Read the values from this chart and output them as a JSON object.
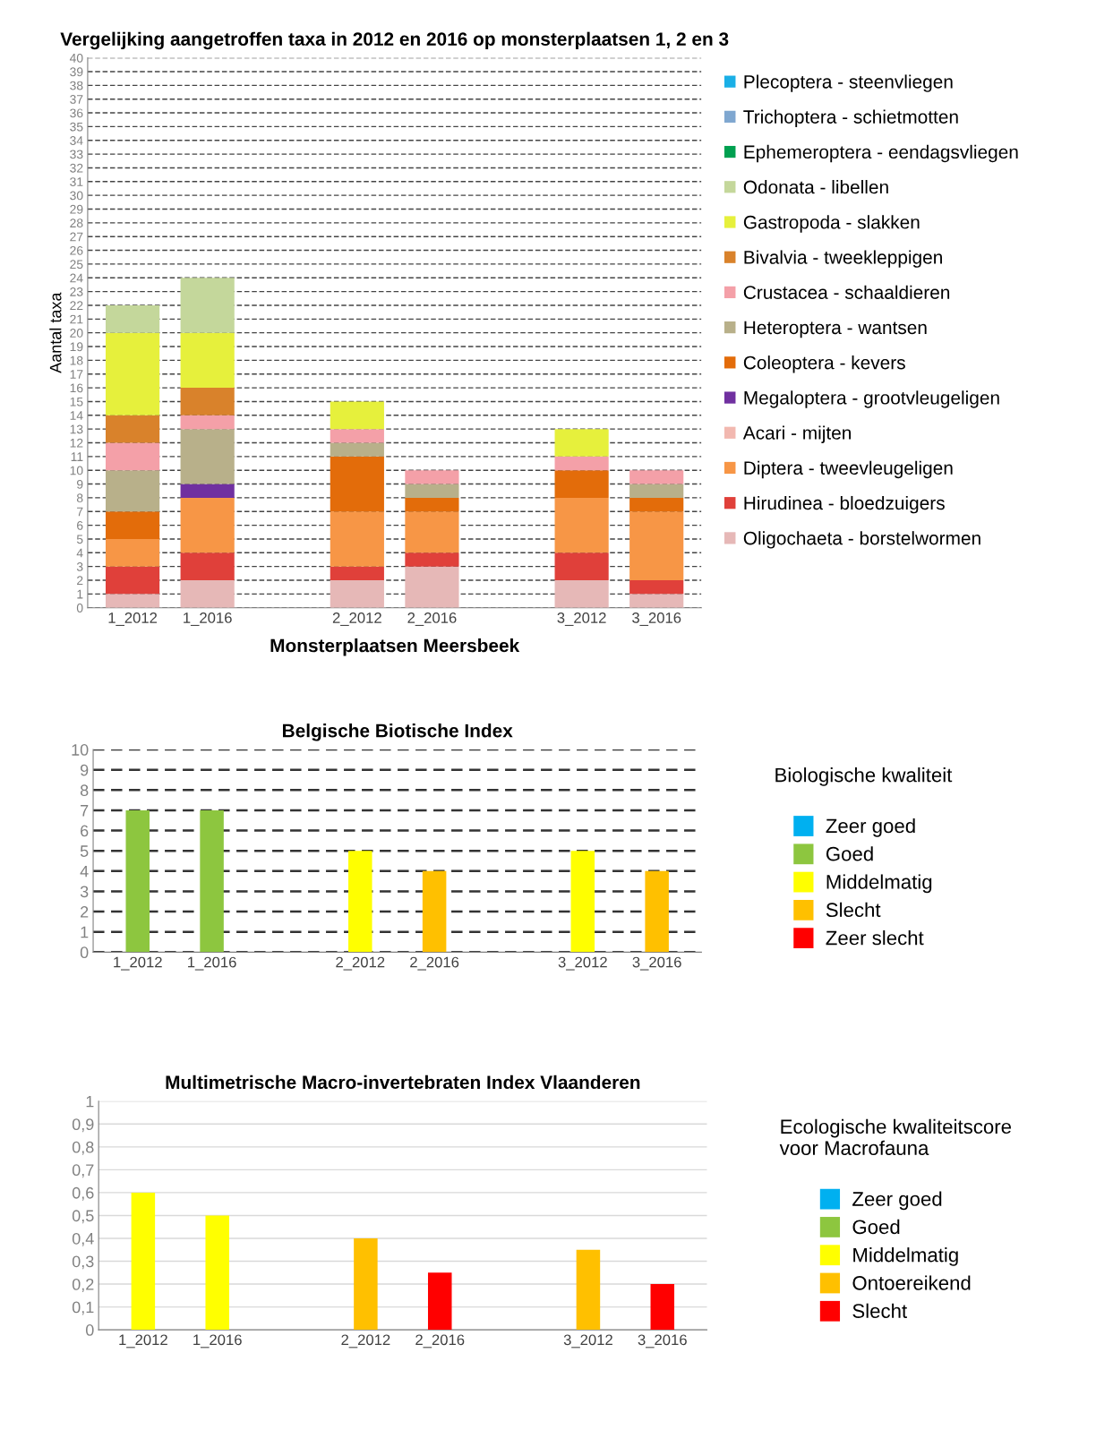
{
  "chart_data": [
    {
      "type": "bar",
      "title": "Vergelijking aangetroffen taxa in 2012 en 2016 op monsterplaatsen 1, 2 en 3",
      "xlabel": "Monsterplaatsen Meersbeek",
      "ylabel": "Aantal taxa",
      "categories": [
        "1_2012",
        "1_2016",
        null,
        "2_2012",
        "2_2016",
        null,
        "3_2012",
        "3_2016"
      ],
      "stacked": true,
      "ylim": [
        0,
        40
      ],
      "yticks": [
        0,
        1,
        2,
        3,
        4,
        5,
        6,
        7,
        8,
        9,
        10,
        11,
        12,
        13,
        14,
        15,
        16,
        17,
        18,
        19,
        20,
        21,
        22,
        23,
        24,
        25,
        26,
        27,
        28,
        29,
        30,
        31,
        32,
        33,
        34,
        35,
        36,
        37,
        38,
        39,
        40
      ],
      "grid": "y",
      "legend": "right",
      "series": [
        {
          "name": "Oligochaeta - borstelwormen",
          "color": "#e6b8b7",
          "values": [
            1,
            2,
            null,
            2,
            3,
            null,
            2,
            1
          ]
        },
        {
          "name": "Hirudinea - bloedzuigers",
          "color": "#e0403a",
          "values": [
            2,
            2,
            null,
            1,
            1,
            null,
            2,
            1
          ]
        },
        {
          "name": "Diptera - tweevleugeligen",
          "color": "#f79646",
          "values": [
            2,
            4,
            null,
            4,
            3,
            null,
            4,
            5
          ]
        },
        {
          "name": "Acari - mijten",
          "color": "#f2b8b0",
          "values": [
            0,
            0,
            null,
            0,
            0,
            null,
            0,
            0
          ]
        },
        {
          "name": "Megaloptera - grootvleugeligen",
          "color": "#7030a0",
          "values": [
            0,
            1,
            null,
            0,
            0,
            null,
            0,
            0
          ]
        },
        {
          "name": "Coleoptera - kevers",
          "color": "#e36c0a",
          "values": [
            2,
            0,
            null,
            4,
            1,
            null,
            2,
            1
          ]
        },
        {
          "name": "Heteroptera - wantsen",
          "color": "#b8b08a",
          "values": [
            3,
            4,
            null,
            1,
            1,
            null,
            0,
            1
          ]
        },
        {
          "name": "Crustacea - schaaldieren",
          "color": "#f4a0a8",
          "values": [
            2,
            1,
            null,
            1,
            1,
            null,
            1,
            1
          ]
        },
        {
          "name": "Bivalvia - tweekleppigen",
          "color": "#d9822b",
          "values": [
            2,
            2,
            null,
            0,
            0,
            null,
            0,
            0
          ]
        },
        {
          "name": "Gastropoda - slakken",
          "color": "#e6f03c",
          "values": [
            6,
            4,
            null,
            2,
            0,
            null,
            2,
            0
          ]
        },
        {
          "name": "Odonata - libellen",
          "color": "#c4d79b",
          "values": [
            2,
            4,
            null,
            0,
            0,
            null,
            0,
            0
          ]
        },
        {
          "name": "Ephemeroptera - eendagsvliegen",
          "color": "#00a050",
          "values": [
            0,
            0,
            null,
            0,
            0,
            null,
            0,
            0
          ]
        },
        {
          "name": "Trichoptera - schietmotten",
          "color": "#7fa7d0",
          "values": [
            0,
            0,
            null,
            0,
            0,
            null,
            0,
            0
          ]
        },
        {
          "name": "Plecoptera - steenvliegen",
          "color": "#1aafe6",
          "values": [
            0,
            0,
            null,
            0,
            0,
            null,
            0,
            0
          ]
        }
      ]
    },
    {
      "type": "bar",
      "title": "Belgische Biotische Index",
      "legend_title": "Biologische kwaliteit",
      "categories": [
        "1_2012",
        "1_2016",
        null,
        "2_2012",
        "2_2016",
        null,
        "3_2012",
        "3_2016"
      ],
      "stacked": true,
      "ylim": [
        0,
        10
      ],
      "yticks": [
        0,
        1,
        2,
        3,
        4,
        5,
        6,
        7,
        8,
        9,
        10
      ],
      "grid": "y",
      "legend": "right",
      "series": [
        {
          "name": "Zeer goed",
          "color": "#00b0f0",
          "values": [
            null,
            null,
            null,
            null,
            null,
            null,
            null,
            null
          ]
        },
        {
          "name": "Goed",
          "color": "#8dc63f",
          "values": [
            7,
            7,
            null,
            null,
            null,
            null,
            null,
            null
          ]
        },
        {
          "name": "Middelmatig",
          "color": "#ffff00",
          "values": [
            null,
            null,
            null,
            5,
            null,
            null,
            5,
            null
          ]
        },
        {
          "name": "Slecht",
          "color": "#ffc000",
          "values": [
            null,
            null,
            null,
            null,
            4,
            null,
            null,
            4
          ]
        },
        {
          "name": "Zeer slecht",
          "color": "#ff0000",
          "values": [
            null,
            null,
            null,
            null,
            null,
            null,
            null,
            null
          ]
        }
      ]
    },
    {
      "type": "bar",
      "title": "Multimetrische Macro-invertebraten Index Vlaanderen",
      "legend_title": "Ecologische kwaliteitscore\nvoor Macrofauna",
      "categories": [
        "1_2012",
        "1_2016",
        null,
        "2_2012",
        "2_2016",
        null,
        "3_2012",
        "3_2016"
      ],
      "stacked": true,
      "ylim": [
        0,
        1
      ],
      "yticks": [
        0,
        {
          "value": 0.1,
          "label": "0,1"
        },
        {
          "value": 0.2,
          "label": "0,2"
        },
        {
          "value": 0.3,
          "label": "0,3"
        },
        {
          "value": 0.4,
          "label": "0,4"
        },
        {
          "value": 0.5,
          "label": "0,5"
        },
        {
          "value": 0.6,
          "label": "0,6"
        },
        {
          "value": 0.7,
          "label": "0,7"
        },
        {
          "value": 0.8,
          "label": "0,8"
        },
        {
          "value": 0.9,
          "label": "0,9"
        },
        1
      ],
      "grid": "y",
      "legend": "right",
      "series": [
        {
          "name": "Zeer goed",
          "color": "#00b0f0",
          "values": [
            null,
            null,
            null,
            null,
            null,
            null,
            null,
            null
          ]
        },
        {
          "name": "Goed",
          "color": "#8dc63f",
          "values": [
            null,
            null,
            null,
            null,
            null,
            null,
            null,
            null
          ]
        },
        {
          "name": "Middelmatig",
          "color": "#ffff00",
          "values": [
            0.6,
            0.5,
            null,
            null,
            null,
            null,
            null,
            null
          ]
        },
        {
          "name": "Ontoereikend",
          "color": "#ffc000",
          "values": [
            null,
            null,
            null,
            0.4,
            null,
            null,
            0.35,
            null
          ]
        },
        {
          "name": "Slecht",
          "color": "#ff0000",
          "values": [
            null,
            null,
            null,
            null,
            0.25,
            null,
            null,
            0.2
          ]
        }
      ]
    }
  ]
}
